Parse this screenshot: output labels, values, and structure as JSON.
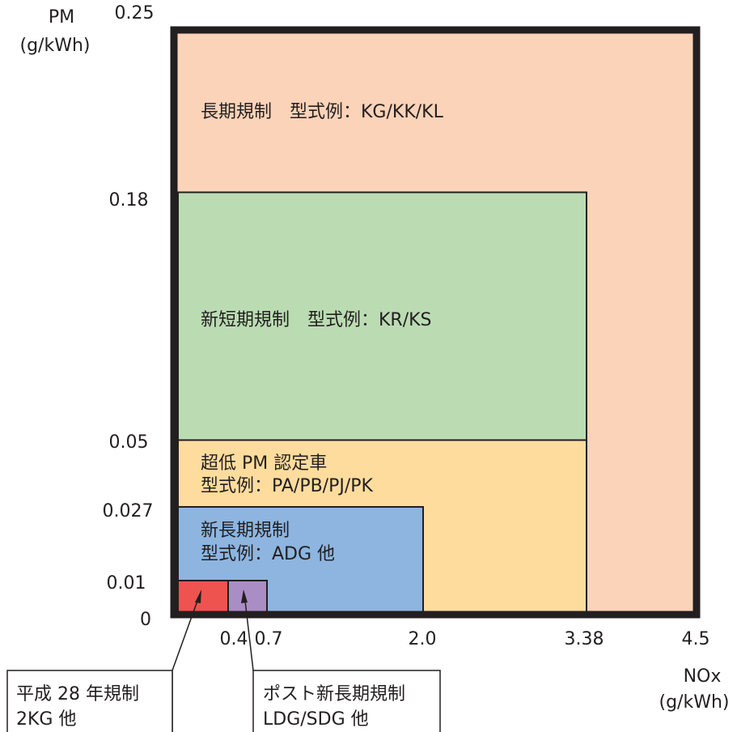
{
  "y_axis": {
    "title": "PM",
    "unit": "(g/kWh)",
    "ticks": [
      "0.25",
      "0.18",
      "0.05",
      "0.027",
      "0.01",
      "0"
    ]
  },
  "x_axis": {
    "title": "NOx",
    "unit": "(g/kWh)",
    "ticks": [
      "0.4",
      "0.7",
      "2.0",
      "3.38",
      "4.5"
    ]
  },
  "regions": [
    {
      "id": "long-term",
      "nox_limit": 4.5,
      "pm_limit": 0.25,
      "color": "#fbd3b8",
      "lines": [
        "長期規制　型式例：KG/KK/KL"
      ]
    },
    {
      "id": "new-short-term",
      "nox_limit": 3.38,
      "pm_limit": 0.18,
      "color": "#bbdcb3",
      "lines": [
        "新短期規制　型式例：KR/KS"
      ]
    },
    {
      "id": "ultra-low-pm",
      "nox_limit": 3.38,
      "pm_limit": 0.05,
      "color": "#fddc9e",
      "lines": [
        "超低 PM 認定車",
        "型式例：PA/PB/PJ/PK"
      ]
    },
    {
      "id": "new-long-term",
      "nox_limit": 2.0,
      "pm_limit": 0.027,
      "color": "#8db5e0",
      "lines": [
        "新長期規制",
        "型式例：ADG 他"
      ]
    },
    {
      "id": "post-new-long-term",
      "nox_limit": 0.7,
      "pm_limit": 0.01,
      "color": "#ab8dc5",
      "lines": []
    },
    {
      "id": "h28",
      "nox_limit": 0.4,
      "pm_limit": 0.01,
      "color": "#ef5350",
      "lines": []
    }
  ],
  "callouts": [
    {
      "id": "h28",
      "lines": [
        "平成 28 年規制",
        "2KG 他"
      ]
    },
    {
      "id": "post-new-long-term",
      "lines": [
        "ポスト新長期規制",
        "LDG/SDG 他"
      ]
    }
  ]
}
